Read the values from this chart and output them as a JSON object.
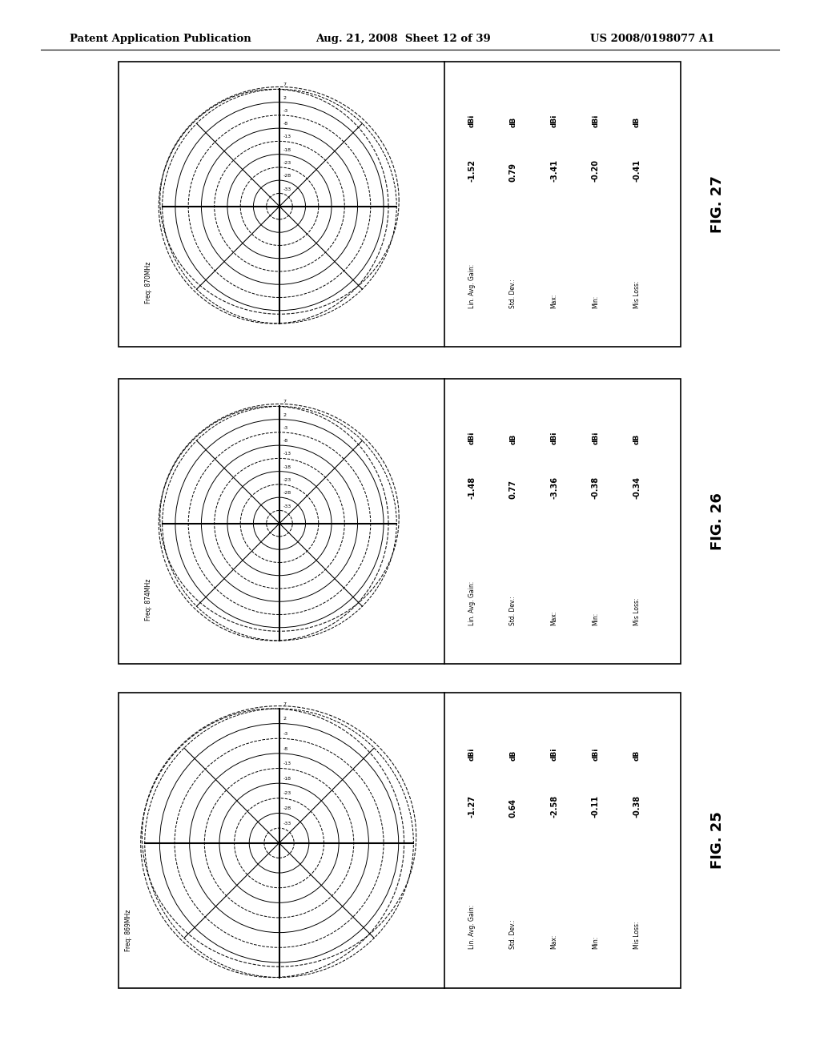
{
  "header_left": "Patent Application Publication",
  "header_mid": "Aug. 21, 2008  Sheet 12 of 39",
  "header_right": "US 2008/0198077 A1",
  "figures": [
    {
      "fig_label": "FIG. 27",
      "freq_label": "Freq: 870MHz",
      "values": [
        "-1.52",
        "0.79",
        "-3.41",
        "-0.20",
        "-0.41"
      ],
      "units": [
        "dBi",
        "dB",
        "dBi",
        "dBi",
        "dB"
      ],
      "labels": [
        "Lin. Avg. Gain:",
        "Std. Dev.:",
        "Max:",
        "Min:",
        "Mis Loss:"
      ]
    },
    {
      "fig_label": "FIG. 26",
      "freq_label": "Freq: 874MHz",
      "values": [
        "-1.48",
        "0.77",
        "-3.36",
        "-0.38",
        "-0.34"
      ],
      "units": [
        "dBi",
        "dB",
        "dBi",
        "dBi",
        "dB"
      ],
      "labels": [
        "Lin. Avg. Gain:",
        "Std. Dev.:",
        "Max:",
        "Min:",
        "Mis Loss:"
      ]
    },
    {
      "fig_label": "FIG. 25",
      "freq_label": "Freq: 869MHz",
      "values": [
        "-1.27",
        "0.64",
        "-2.58",
        "-0.11",
        "-0.38"
      ],
      "units": [
        "dBi",
        "dB",
        "dBi",
        "dBi",
        "dB"
      ],
      "labels": [
        "Lin. Avg. Gain:",
        "Std. Dev.:",
        "Max:",
        "Min:",
        "Mis Loss:"
      ]
    }
  ],
  "ring_labels": [
    "7",
    "2",
    "-3",
    "-8",
    "-13",
    "-18",
    "-23",
    "-28",
    "-33"
  ],
  "num_rings": 9,
  "bg_color": "#ffffff"
}
